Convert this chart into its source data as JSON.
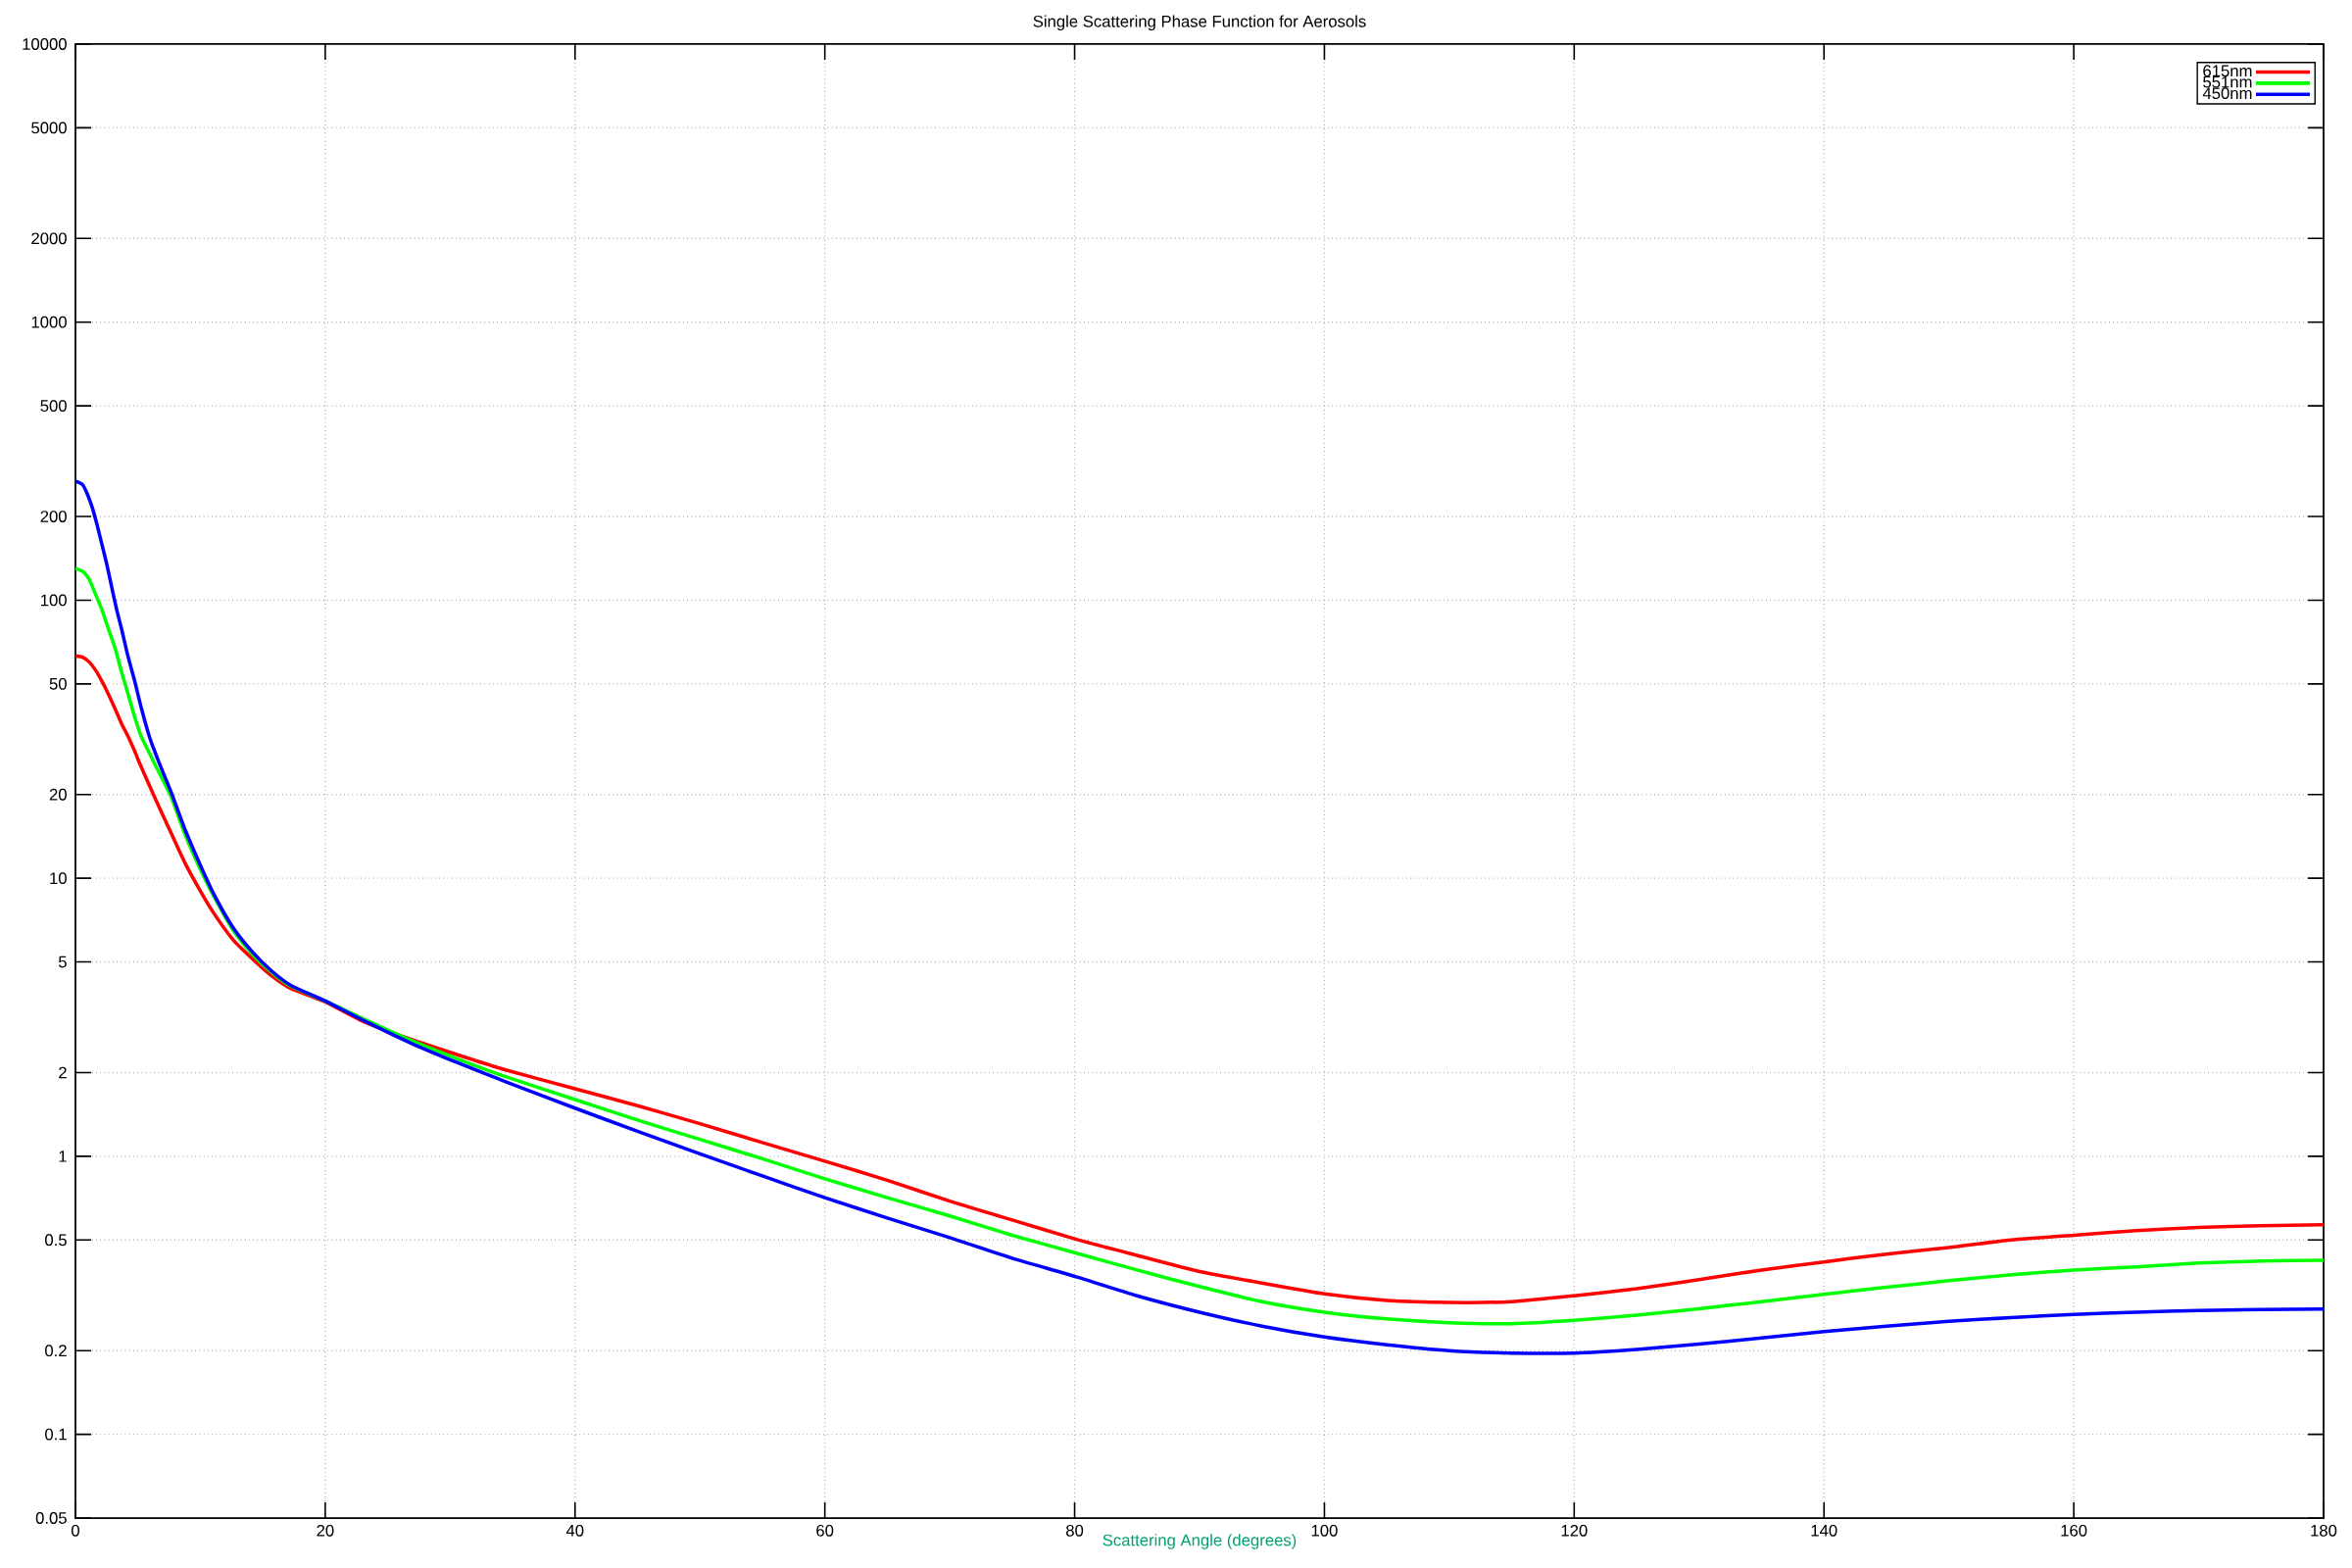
{
  "chart_data": {
    "type": "line",
    "title": "Single Scattering Phase Function for Aerosols",
    "xlabel": "Scattering Angle (degrees)",
    "xlim": [
      0,
      180
    ],
    "ylim": [
      0.05,
      10000
    ],
    "xticks": [
      0,
      20,
      40,
      60,
      80,
      100,
      120,
      140,
      160,
      180
    ],
    "yticks": [
      0.05,
      0.1,
      0.2,
      0.5,
      1,
      2,
      5,
      10,
      20,
      50,
      100,
      200,
      500,
      1000,
      2000,
      5000,
      10000
    ],
    "log": "y",
    "grid": true,
    "legend": "top right",
    "series": [
      {
        "name": "615nm",
        "color": "#ff0000",
        "x": [
          0,
          0.57,
          1.09,
          1.61,
          2.13,
          2.65,
          3.18,
          3.7,
          4.22,
          4.75,
          5.06,
          5.72,
          6.49,
          7.64,
          8.79,
          9.94,
          11.09,
          12.63,
          14.17,
          15.7,
          17.24,
          20,
          23,
          26.8,
          30.7,
          34.5,
          40,
          45,
          50,
          55,
          60,
          65,
          70,
          75,
          80,
          85,
          90,
          95,
          100,
          105,
          110,
          115,
          120,
          125,
          130,
          135,
          140,
          145,
          150,
          155,
          160,
          165,
          170,
          175,
          180
        ],
        "values": [
          63,
          62.4,
          60,
          56,
          51,
          45.8,
          40.6,
          35.9,
          32.3,
          28.6,
          26.4,
          22.6,
          18.9,
          14.6,
          11.3,
          9.1,
          7.47,
          6.0,
          5.13,
          4.46,
          4.01,
          3.59,
          3.06,
          2.64,
          2.31,
          2.04,
          1.75,
          1.52,
          1.31,
          1.12,
          0.96,
          0.82,
          0.69,
          0.59,
          0.505,
          0.44,
          0.385,
          0.35,
          0.32,
          0.303,
          0.298,
          0.3,
          0.315,
          0.334,
          0.36,
          0.39,
          0.417,
          0.445,
          0.47,
          0.5,
          0.52,
          0.54,
          0.555,
          0.563,
          0.567
        ]
      },
      {
        "name": "551nm",
        "color": "#00ff00",
        "x": [
          0,
          0.57,
          1.09,
          1.61,
          2.13,
          2.65,
          3.18,
          3.7,
          4.22,
          4.75,
          5.27,
          5.92,
          6.3,
          7.64,
          8.79,
          9.94,
          11.09,
          12.63,
          14.17,
          15.7,
          17.24,
          20,
          23,
          26.8,
          30.7,
          34.5,
          40,
          45,
          50,
          55,
          60,
          65,
          70,
          75,
          80,
          85,
          90,
          95,
          100,
          105,
          110,
          115,
          120,
          125,
          130,
          135,
          140,
          145,
          150,
          155,
          160,
          165,
          170,
          175,
          180
        ],
        "values": [
          130,
          127,
          119,
          105,
          92,
          78.5,
          67,
          55,
          45.8,
          37.9,
          32.3,
          28.2,
          26,
          19.7,
          14.3,
          10.9,
          8.58,
          6.5,
          5.33,
          4.59,
          4.09,
          3.62,
          3.13,
          2.62,
          2.23,
          1.93,
          1.6,
          1.35,
          1.15,
          0.98,
          0.83,
          0.71,
          0.61,
          0.52,
          0.45,
          0.39,
          0.34,
          0.3,
          0.275,
          0.26,
          0.252,
          0.25,
          0.257,
          0.268,
          0.283,
          0.3,
          0.319,
          0.338,
          0.357,
          0.375,
          0.39,
          0.4,
          0.413,
          0.42,
          0.423
        ]
      },
      {
        "name": "450nm",
        "color": "#0000ff",
        "x": [
          0,
          0.57,
          0.96,
          1.35,
          1.74,
          2.13,
          2.52,
          2.91,
          3.31,
          3.7,
          4.2,
          4.75,
          5.27,
          5.92,
          6.7,
          7.64,
          8.79,
          9.94,
          11.09,
          12.63,
          14.17,
          15.7,
          17.24,
          20,
          23,
          26.8,
          30.7,
          34.5,
          40,
          45,
          50,
          55,
          60,
          65,
          70,
          75,
          80,
          85,
          90,
          95,
          100,
          105,
          110,
          115,
          120,
          125,
          130,
          135,
          140,
          145,
          150,
          155,
          160,
          165,
          170,
          175,
          180
        ],
        "values": [
          268,
          260,
          240,
          215,
          186,
          158,
          134,
          111,
          92,
          78.5,
          63,
          51,
          41,
          32.3,
          26,
          20.5,
          14.9,
          11.3,
          8.75,
          6.63,
          5.43,
          4.64,
          4.12,
          3.62,
          3.09,
          2.56,
          2.16,
          1.85,
          1.49,
          1.23,
          1.02,
          0.85,
          0.71,
          0.6,
          0.51,
          0.43,
          0.37,
          0.315,
          0.275,
          0.245,
          0.224,
          0.21,
          0.2,
          0.196,
          0.196,
          0.202,
          0.211,
          0.222,
          0.234,
          0.245,
          0.255,
          0.263,
          0.27,
          0.275,
          0.279,
          0.281,
          0.282
        ]
      }
    ]
  }
}
